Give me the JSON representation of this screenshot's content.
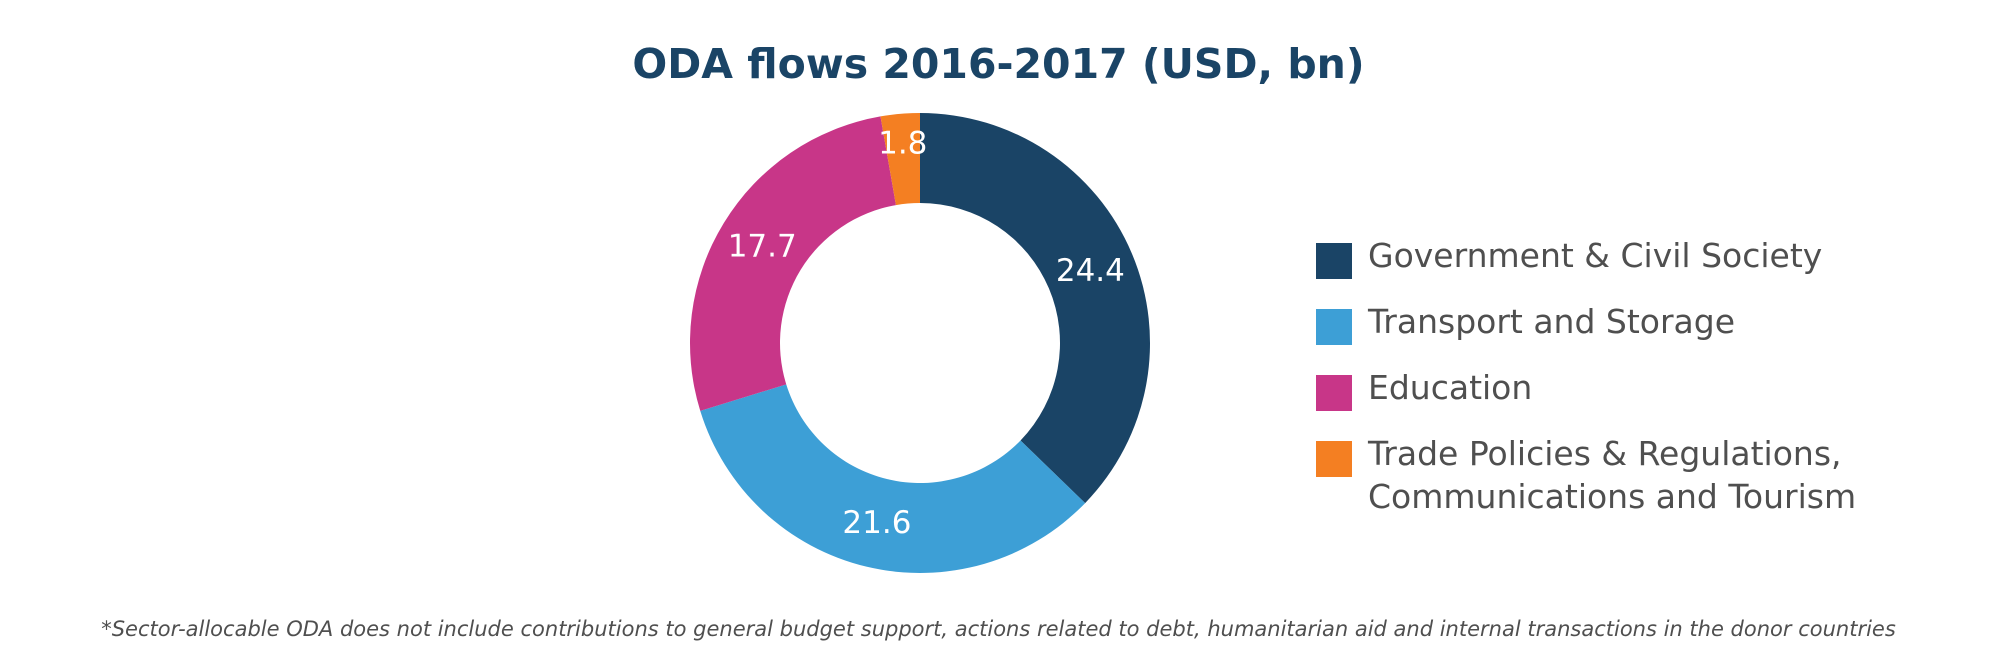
{
  "colors": {
    "government": "#1a4466",
    "transport": "#3d9fd6",
    "education": "#c83688",
    "trade": "#f47f22",
    "label_text": "#ffffff"
  },
  "chart_data": {
    "type": "pie",
    "variant": "donut",
    "title": "ODA flows 2016-2017 (USD, bn)",
    "legend_position": "right",
    "slices": [
      {
        "label": "Government & Civil Society",
        "value": 24.4,
        "value_label": "24.4",
        "color": "#1a4466"
      },
      {
        "label": "Transport and Storage",
        "value": 21.6,
        "value_label": "21.6",
        "color": "#3d9fd6"
      },
      {
        "label": "Education",
        "value": 17.7,
        "value_label": "17.7",
        "color": "#c83688"
      },
      {
        "label": "Trade Policies & Regulations, Communications and Tourism",
        "value": 1.8,
        "value_label": "1.8",
        "color": "#f47f22"
      }
    ],
    "legend": [
      {
        "lines": [
          "Government & Civil Society"
        ],
        "color": "#1a4466"
      },
      {
        "lines": [
          "Transport and Storage"
        ],
        "color": "#3d9fd6"
      },
      {
        "lines": [
          "Education"
        ],
        "color": "#c83688"
      },
      {
        "lines": [
          "Trade Policies & Regulations,",
          "Communications and Tourism"
        ],
        "color": "#f47f22"
      }
    ]
  },
  "footnote": "*Sector-allocable ODA  does not include contributions to general budget support, actions related to debt, humanitarian aid and internal transactions in the donor countries"
}
